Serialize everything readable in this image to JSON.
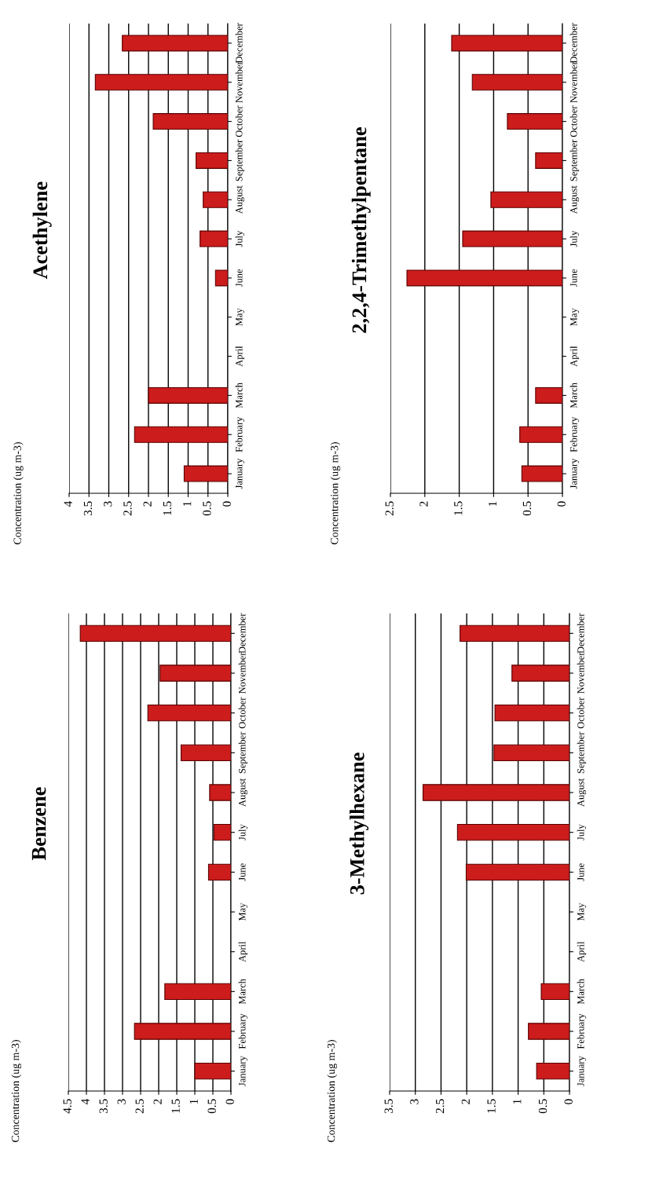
{
  "chart_data": [
    {
      "type": "bar",
      "orientation": "horizontal",
      "title": "Acethylene",
      "ylabel": "Concentration (ug m-3)",
      "categories": [
        "December",
        "November",
        "October",
        "September",
        "August",
        "July",
        "June",
        "May",
        "April",
        "March",
        "February",
        "January"
      ],
      "series": [
        {
          "color": "#cc1c1c",
          "values": [
            2.66,
            3.34,
            1.88,
            0.8,
            0.62,
            0.7,
            0.31,
            null,
            null,
            2.0,
            2.35,
            1.1
          ]
        }
      ],
      "xlim": [
        4,
        0
      ],
      "xticks": [
        4,
        3.5,
        3,
        2.5,
        2,
        1.5,
        1,
        0.5,
        0
      ],
      "grid": "x"
    },
    {
      "type": "bar",
      "orientation": "horizontal",
      "title": "2,2,4-Trimethylpentane",
      "ylabel": "Concentration (ug m-3)",
      "categories": [
        "December",
        "November",
        "October",
        "September",
        "August",
        "July",
        "June",
        "May",
        "April",
        "March",
        "February",
        "January"
      ],
      "series": [
        {
          "color": "#cc1c1c",
          "values": [
            1.61,
            1.31,
            0.8,
            0.39,
            1.04,
            1.45,
            2.26,
            null,
            null,
            0.39,
            0.62,
            0.59
          ]
        }
      ],
      "xlim": [
        2.5,
        0
      ],
      "xticks": [
        2.5,
        2,
        1.5,
        1,
        0.5,
        0
      ],
      "grid": "x"
    },
    {
      "type": "bar",
      "orientation": "horizontal",
      "title": "Benzene",
      "ylabel": "Concentration (ug m-3)",
      "categories": [
        "December",
        "November",
        "October",
        "September",
        "August",
        "July",
        "June",
        "May",
        "April",
        "March",
        "February",
        "January"
      ],
      "series": [
        {
          "color": "#cc1c1c",
          "values": [
            4.17,
            1.96,
            2.3,
            1.38,
            0.59,
            0.47,
            0.62,
            null,
            null,
            1.83,
            2.67,
            1.0
          ]
        }
      ],
      "xlim": [
        4.5,
        0
      ],
      "xticks": [
        4.5,
        4,
        3.5,
        3,
        2.5,
        2,
        1.5,
        1,
        0.5,
        0
      ],
      "grid": "x"
    },
    {
      "type": "bar",
      "orientation": "horizontal",
      "title": "3-Methylhexane",
      "ylabel": "Concentration (ug m-3)",
      "categories": [
        "December",
        "November",
        "October",
        "September",
        "August",
        "July",
        "June",
        "May",
        "April",
        "March",
        "February",
        "January"
      ],
      "series": [
        {
          "color": "#cc1c1c",
          "values": [
            2.13,
            1.12,
            1.45,
            1.47,
            2.85,
            2.18,
            2.01,
            null,
            null,
            0.55,
            0.8,
            0.64
          ]
        }
      ],
      "xlim": [
        3.5,
        0
      ],
      "xticks": [
        3.5,
        3,
        2.5,
        2,
        1.5,
        1,
        0.5,
        0
      ],
      "grid": "x"
    }
  ]
}
